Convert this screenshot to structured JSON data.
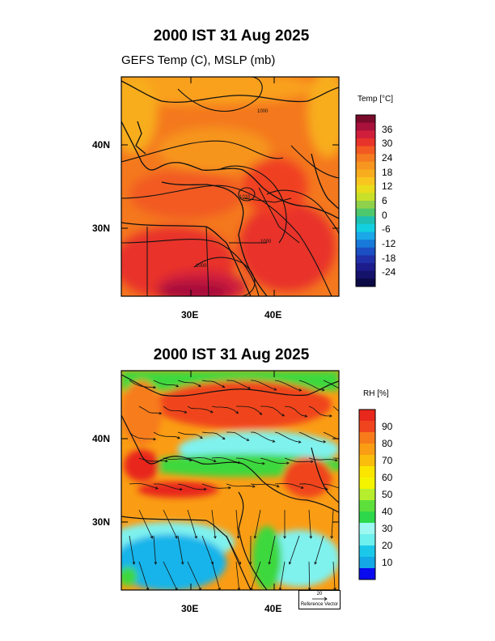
{
  "panel_temp": {
    "title": "2000 IST 31 Aug 2025",
    "subtitle": "GEFS Temp (C), MSLP (mb)",
    "lat_labels": [
      "40N",
      "30N"
    ],
    "lon_labels": [
      "30E",
      "40E"
    ],
    "colorbar": {
      "title": "Temp [°C]",
      "labels": [
        "36",
        "30",
        "24",
        "18",
        "12",
        "6",
        "0",
        "-6",
        "-12",
        "-18",
        "-24"
      ],
      "colors": [
        "#7a0a2a",
        "#a8113b",
        "#cf1f3c",
        "#e8332a",
        "#f25a22",
        "#f47b1f",
        "#f6951f",
        "#f8ad1f",
        "#f9c61f",
        "#e9dc1c",
        "#c9e02a",
        "#8fd14a",
        "#4ec86c",
        "#1fc0b4",
        "#13d0e0",
        "#1aa8e8",
        "#1779d8",
        "#1c4fc4",
        "#2130a8",
        "#1d1c8c",
        "#14126a",
        "#0b0a45"
      ]
    },
    "isobar_labels": [
      "1000",
      "1010",
      "1000",
      "1000"
    ]
  },
  "panel_rh": {
    "title": "2000 IST 31 Aug 2025",
    "lat_labels": [
      "40N",
      "30N"
    ],
    "lon_labels": [
      "30E",
      "40E"
    ],
    "colorbar": {
      "title": "RH [%]",
      "labels": [
        "90",
        "80",
        "70",
        "60",
        "50",
        "40",
        "30",
        "20",
        "10"
      ],
      "colors": [
        "#e8281c",
        "#f0441e",
        "#f77b1a",
        "#fa9d14",
        "#fbbd0c",
        "#fbe600",
        "#f4f400",
        "#b6ee2e",
        "#5ee03c",
        "#2dd84a",
        "#9cf8f0",
        "#6ef0ee",
        "#1cc8ea",
        "#14a8e6",
        "#0a0af0"
      ]
    },
    "ref_vector": {
      "value": "20",
      "label": "Reference Vector"
    }
  },
  "colors": {
    "temp_base": "#f4781e",
    "temp_hot": "#cf1f3c",
    "rh_orange": "#f77b1a",
    "rh_cyan": "#7ff2ee",
    "rh_blue": "#16b4ea",
    "rh_green": "#3ed83c"
  }
}
